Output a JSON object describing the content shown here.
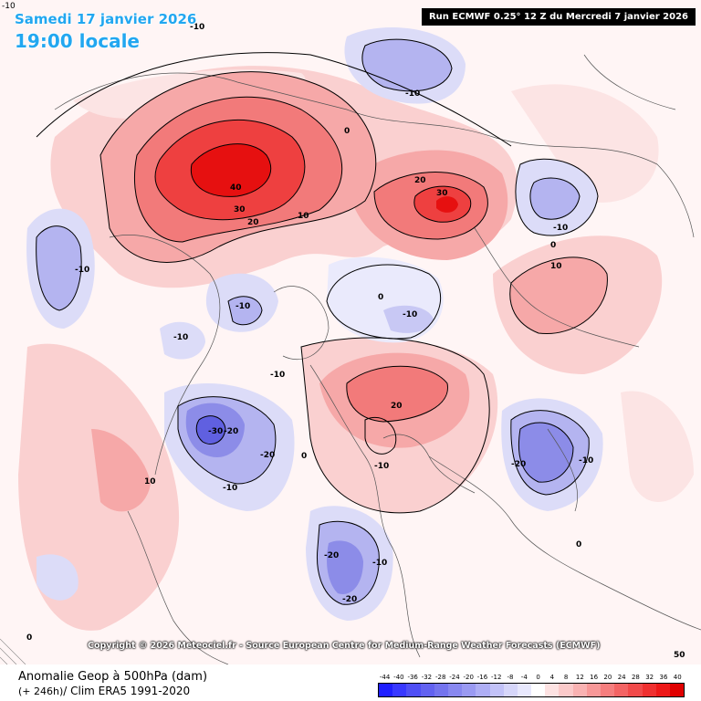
{
  "header": {
    "date": "Samedi 17 janvier 2026",
    "time": "19:00 locale",
    "run": "Run ECMWF 0.25° 12 Z du Mercredi 7 janvier 2026"
  },
  "corner_labels": {
    "top_left": "-10",
    "bottom_right": "50"
  },
  "copyright": "Copyright © 2026 Meteociel.fr - Source European Centre for Medium-Range Weather Forecasts (ECMWF)",
  "legend": {
    "line1": "Anomalie Geop à 500hPa (dam)",
    "lead": "(+ 246h)",
    "line2_rest": "/ Clim ERA5 1991-2020",
    "scale_values": [
      "-44",
      "-40",
      "-36",
      "-32",
      "-28",
      "-24",
      "-20",
      "-16",
      "-12",
      "-8",
      "-4",
      "0",
      "4",
      "8",
      "12",
      "16",
      "20",
      "24",
      "28",
      "32",
      "36",
      "40"
    ],
    "scale_colors": [
      "#1f1fff",
      "#3838ff",
      "#4f4ff5",
      "#6262f0",
      "#7474ee",
      "#8888f0",
      "#9a9af2",
      "#aeaef5",
      "#c2c2f8",
      "#d6d6fa",
      "#e8e8fd",
      "#ffffff",
      "#fde2e2",
      "#fbcaca",
      "#f9b2b2",
      "#f79898",
      "#f57e7e",
      "#f36464",
      "#f14a4a",
      "#ef3030",
      "#ed1818",
      "#e00000"
    ]
  },
  "map": {
    "colors": {
      "pos1": "#fad0d0",
      "pos2": "#f6a8a8",
      "pos3": "#f27a7a",
      "pos4": "#ee4040",
      "pos5": "#e61010",
      "neg1": "#dcdcf8",
      "neg2": "#b4b4f0",
      "neg3": "#8c8ce8",
      "neg4": "#6060e0"
    },
    "contour_labels": [
      "-10",
      "-10",
      "-10",
      "-10",
      "-10",
      "-10",
      "-10",
      "-10",
      "-10",
      "-10",
      "-10",
      "-10",
      "-20",
      "-20",
      "-20",
      "-20",
      "-20",
      "-30",
      "0",
      "0",
      "0",
      "0",
      "0",
      "0",
      "10",
      "10",
      "10",
      "20",
      "20",
      "20",
      "30",
      "30",
      "40"
    ]
  }
}
